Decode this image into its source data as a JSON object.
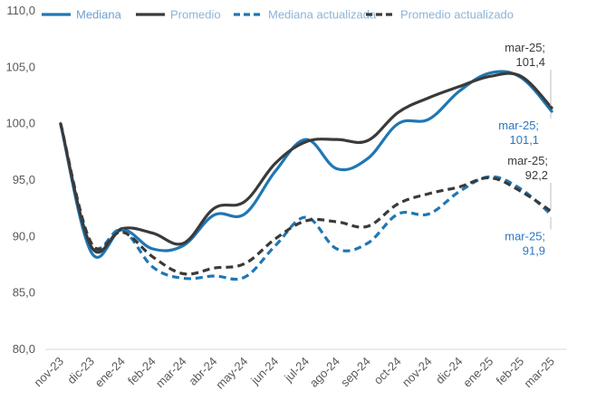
{
  "chart_data": {
    "type": "line",
    "categories": [
      "nov-23",
      "dic-23",
      "ene-24",
      "feb-24",
      "mar-24",
      "abr-24",
      "may-24",
      "jun-24",
      "jul-24",
      "ago-24",
      "sep-24",
      "oct-24",
      "nov-24",
      "dic-24",
      "ene-25",
      "feb-25",
      "mar-25"
    ],
    "ylim": [
      80,
      110
    ],
    "yticks": [
      "80,0",
      "85,0",
      "90,0",
      "95,0",
      "100,0",
      "105,0",
      "110,0"
    ],
    "ytick_values": [
      80,
      85,
      90,
      95,
      100,
      105,
      110
    ],
    "grid": false,
    "legend_position": "top",
    "series": [
      {
        "name": "Mediana",
        "color": "#1f77b4",
        "dash": "solid",
        "values": [
          100.0,
          88.6,
          90.6,
          88.9,
          89.2,
          91.9,
          92.0,
          95.8,
          98.6,
          96.0,
          96.9,
          100.0,
          100.4,
          102.9,
          104.5,
          104.1,
          101.1
        ]
      },
      {
        "name": "Promedio",
        "color": "#3a3a3a",
        "dash": "solid",
        "values": [
          100.0,
          89.1,
          90.7,
          90.3,
          89.4,
          92.5,
          93.1,
          96.5,
          98.4,
          98.6,
          98.5,
          101.0,
          102.3,
          103.3,
          104.2,
          104.2,
          101.4
        ]
      },
      {
        "name": "Mediana actualizada",
        "color": "#1f77b4",
        "dash": "dashed",
        "values": [
          100.0,
          89.4,
          90.6,
          87.3,
          86.3,
          86.5,
          86.4,
          89.2,
          91.7,
          88.9,
          89.4,
          92.0,
          92.0,
          94.0,
          95.3,
          94.2,
          91.9
        ]
      },
      {
        "name": "Promedio actualizado",
        "color": "#3a3a3a",
        "dash": "dashed",
        "values": [
          100.0,
          89.4,
          90.4,
          88.2,
          86.7,
          87.2,
          87.6,
          89.8,
          91.4,
          91.3,
          90.9,
          92.9,
          93.8,
          94.4,
          95.2,
          94.0,
          92.2
        ]
      }
    ],
    "annotations": [
      {
        "series": "Promedio",
        "color": "#3a3a3a",
        "lines": [
          "mar-25;",
          "101,4"
        ]
      },
      {
        "series": "Mediana",
        "color": "#2a78c2",
        "lines": [
          "mar-25;",
          "101,1"
        ]
      },
      {
        "series": "Promedio actualizado",
        "color": "#3a3a3a",
        "lines": [
          "mar-25;",
          "92,2"
        ]
      },
      {
        "series": "Mediana actualizada",
        "color": "#2a78c2",
        "lines": [
          "mar-25;",
          "91,9"
        ]
      }
    ]
  }
}
